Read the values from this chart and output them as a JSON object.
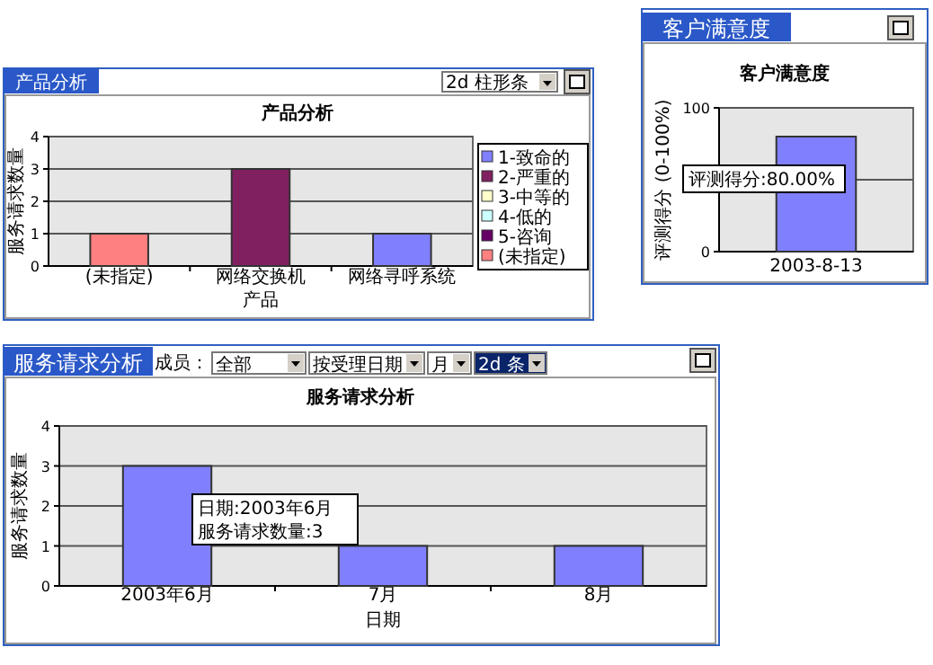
{
  "chart_data": [
    {
      "type": "bar",
      "title": "产品分析",
      "xlabel": "产品",
      "ylabel": "服务请求数量",
      "categories": [
        "(未指定)",
        "网络交换机",
        "网络寻呼系统"
      ],
      "ylim": [
        0,
        4
      ],
      "yticks": [
        0,
        1,
        2,
        3,
        4
      ],
      "grid": "y",
      "legend": "right",
      "series": [
        {
          "name": "1-致命的",
          "color": "#8080ff",
          "values": [
            null,
            null,
            1
          ]
        },
        {
          "name": "2-严重的",
          "color": "#802060",
          "values": [
            null,
            3,
            null
          ]
        },
        {
          "name": "3-中等的",
          "color": "#ffffcc",
          "values": [
            null,
            null,
            null
          ]
        },
        {
          "name": "4-低的",
          "color": "#ccffff",
          "values": [
            null,
            null,
            null
          ]
        },
        {
          "name": "5-咨询",
          "color": "#660066",
          "values": [
            null,
            null,
            null
          ]
        },
        {
          "name": "(未指定)",
          "color": "#ff8080",
          "values": [
            1,
            null,
            null
          ]
        }
      ],
      "annotations": [
        "产品分析",
        "2d 柱形条"
      ]
    },
    {
      "type": "bar",
      "title": "客户满意度",
      "ylabel": "评测得分 (0-100%)",
      "categories": [
        "2003-8-13"
      ],
      "values": [
        80
      ],
      "color": "#8080ff",
      "ylim": [
        0,
        100
      ],
      "yticks": [
        0,
        {
          "value": 50,
          "label": null
        },
        100
      ],
      "grid": "y",
      "annotations": [
        "客户满意度",
        "评测得分:80.00%"
      ]
    },
    {
      "type": "bar",
      "title": "服务请求分析",
      "xlabel": "日期",
      "ylabel": "服务请求数量",
      "categories": [
        "2003年6月",
        "7月",
        "8月"
      ],
      "values": [
        3,
        1,
        1
      ],
      "color": "#8080ff",
      "ylim": [
        0,
        4
      ],
      "yticks": [
        0,
        1,
        2,
        3,
        4
      ],
      "grid": "y",
      "annotations": [
        "服务请求分析",
        "成员：",
        "全部",
        "按受理日期",
        "月",
        "2d 条",
        "日期:2003年6月",
        "服务请求数量:3"
      ]
    }
  ]
}
